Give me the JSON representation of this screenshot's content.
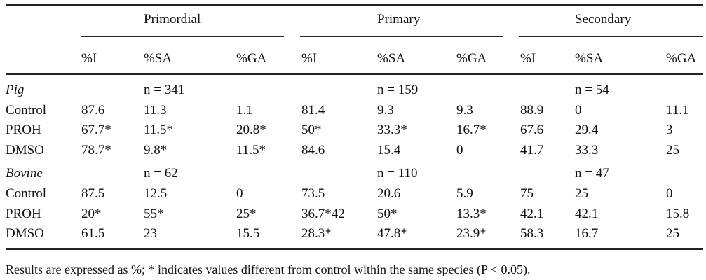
{
  "table": {
    "groups": [
      "Primordial",
      "Primary",
      "Secondary"
    ],
    "subheaders": [
      "%I",
      "%SA",
      "%GA",
      "%I",
      "%SA",
      "%GA",
      "%I",
      "%SA",
      "%GA"
    ],
    "sections": [
      {
        "species": "Pig",
        "n_values": [
          "n = 341",
          "n = 159",
          "n = 54"
        ],
        "rows": [
          {
            "label": "Control",
            "cells": [
              "87.6",
              "11.3",
              "1.1",
              "81.4",
              "9.3",
              "9.3",
              "88.9",
              "0",
              "11.1"
            ]
          },
          {
            "label": "PROH",
            "cells": [
              "67.7*",
              "11.5*",
              "20.8*",
              "50*",
              "33.3*",
              "16.7*",
              "67.6",
              "29.4",
              "3"
            ]
          },
          {
            "label": "DMSO",
            "cells": [
              "78.7*",
              "9.8*",
              "11.5*",
              "84.6",
              "15.4",
              "0",
              "41.7",
              "33.3",
              "25"
            ]
          }
        ]
      },
      {
        "species": "Bovine",
        "n_values": [
          "n = 62",
          "n = 110",
          "n = 47"
        ],
        "rows": [
          {
            "label": "Control",
            "cells": [
              "87.5",
              "12.5",
              "0",
              "73.5",
              "20.6",
              "5.9",
              "75",
              "25",
              "0"
            ]
          },
          {
            "label": "PROH",
            "cells": [
              "20*",
              "55*",
              "25*",
              "36.7*42",
              "50*",
              "13.3*",
              "42.1",
              "42.1",
              "15.8"
            ]
          },
          {
            "label": "DMSO",
            "cells": [
              "61.5",
              "23",
              "15.5",
              "28.3*",
              "47.8*",
              "23.9*",
              "58.3",
              "16.7",
              "25"
            ]
          }
        ]
      }
    ],
    "footnote": "Results are expressed as %; * indicates values different from control within the same species (P < 0.05)."
  }
}
